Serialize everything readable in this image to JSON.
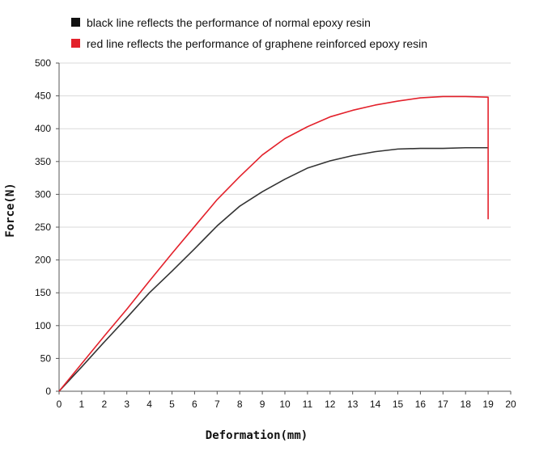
{
  "chart_data": {
    "type": "line",
    "title": "",
    "xlabel": "Deformation(mm)",
    "ylabel": "Force(N)",
    "xlim": [
      0,
      20
    ],
    "ylim": [
      0,
      500
    ],
    "x_ticks": [
      0,
      1,
      2,
      3,
      4,
      5,
      6,
      7,
      8,
      9,
      10,
      11,
      12,
      13,
      14,
      15,
      16,
      17,
      18,
      19,
      20
    ],
    "y_ticks": [
      0,
      50,
      100,
      150,
      200,
      250,
      300,
      350,
      400,
      450,
      500
    ],
    "grid": "horizontal",
    "legend_position": "top-left",
    "legend": [
      {
        "label": "black line reflects the performance of normal epoxy resin",
        "color": "#111111"
      },
      {
        "label": "red line reflects the performance of graphene reinforced epoxy resin",
        "color": "#e3212b"
      }
    ],
    "series": [
      {
        "color": "#333333",
        "x": [
          0,
          1,
          2,
          3,
          4,
          5,
          6,
          7,
          8,
          9,
          10,
          11,
          12,
          13,
          14,
          15,
          16,
          17,
          18,
          19
        ],
        "y": [
          0,
          37,
          75,
          112,
          150,
          183,
          217,
          252,
          282,
          304,
          323,
          340,
          351,
          359,
          365,
          369,
          370,
          370,
          371,
          371
        ]
      },
      {
        "color": "#e3212b",
        "x": [
          0,
          1,
          2,
          3,
          4,
          5,
          6,
          7,
          8,
          9,
          10,
          11,
          12,
          13,
          14,
          15,
          16,
          17,
          18,
          19,
          19
        ],
        "y": [
          0,
          42,
          84,
          125,
          168,
          210,
          251,
          292,
          327,
          360,
          385,
          403,
          418,
          428,
          436,
          442,
          447,
          449,
          449,
          448,
          262
        ]
      }
    ]
  }
}
